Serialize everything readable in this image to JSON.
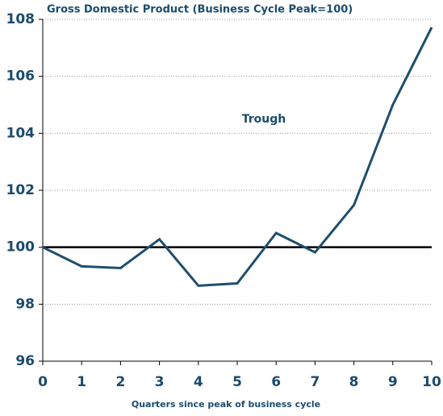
{
  "chart_data": {
    "type": "line",
    "title": "Gross Domestic Product (Business Cycle Peak=100)",
    "x_label": "Quarters since peak of business cycle",
    "annotation": "Trough",
    "x": [
      0,
      1,
      2,
      3,
      4,
      5,
      6,
      7,
      8,
      9,
      10
    ],
    "series": [
      {
        "name": "GDP",
        "color": "#1f4e6e",
        "values": [
          100,
          99.33,
          99.27,
          100.28,
          98.65,
          98.73,
          100.5,
          99.82,
          101.48,
          105.0,
          107.72
        ]
      }
    ],
    "reference_line": 100,
    "xlim": [
      0,
      10
    ],
    "xticks": [
      0,
      1,
      2,
      3,
      4,
      5,
      6,
      7,
      8,
      9,
      10
    ],
    "ylim": [
      96,
      108
    ],
    "yticks": [
      96,
      98,
      100,
      102,
      104,
      106,
      108
    ],
    "grid": true
  }
}
